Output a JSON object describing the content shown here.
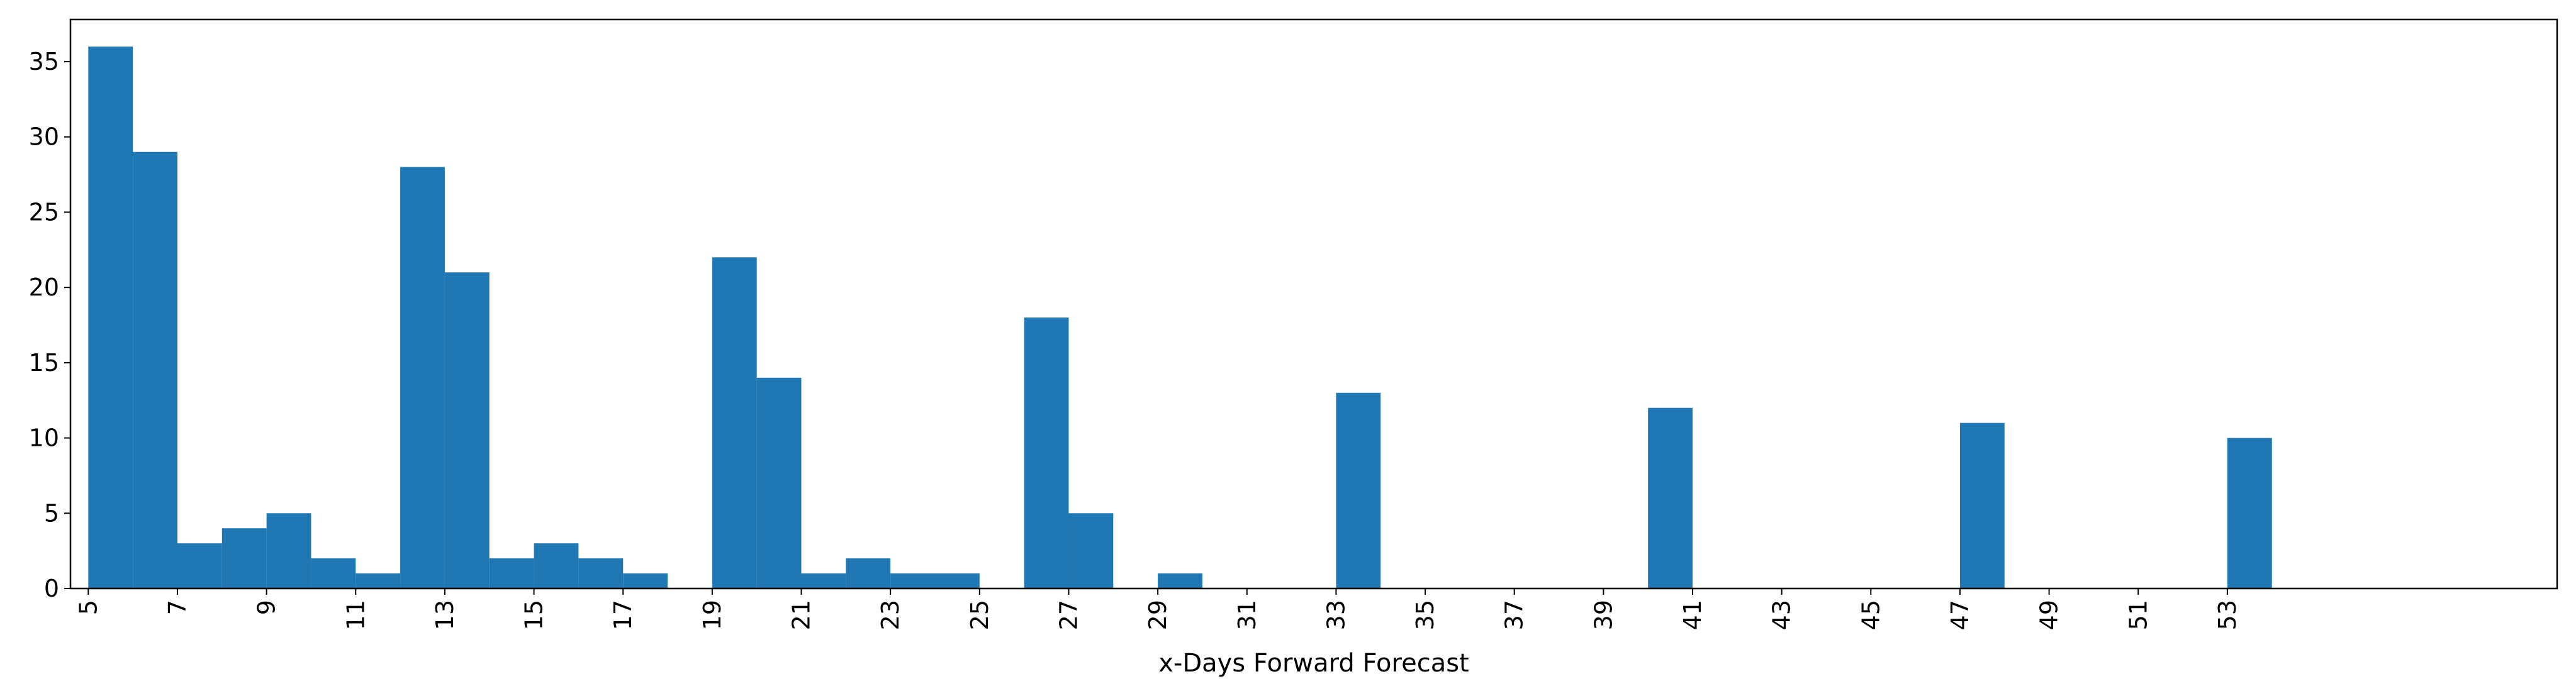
{
  "chart_data": {
    "type": "bar",
    "title": "",
    "xlabel": "x-Days Forward Forecast",
    "ylabel": "",
    "bar_color": "#1f77b4",
    "grid": false,
    "legend": "none",
    "xlim": [
      4.6,
      60.4
    ],
    "ylim": [
      0,
      37.8
    ],
    "x_ticks": [
      5,
      7,
      9,
      11,
      13,
      15,
      17,
      19,
      21,
      23,
      25,
      27,
      29,
      31,
      33,
      35,
      37,
      39,
      41,
      43,
      45,
      47,
      49,
      51,
      53
    ],
    "x_tick_labels": [
      "5",
      "7",
      "9",
      "11",
      "13",
      "15",
      "17",
      "19",
      "21",
      "23",
      "25",
      "27",
      "29",
      "31",
      "33",
      "35",
      "37",
      "39",
      "41",
      "43",
      "45",
      "47",
      "49",
      "51",
      "53"
    ],
    "y_ticks": [
      0,
      5,
      10,
      15,
      20,
      25,
      30,
      35
    ],
    "y_tick_labels": [
      "0",
      "5",
      "10",
      "15",
      "20",
      "25",
      "30",
      "35"
    ],
    "bin_width": 1,
    "bins": [
      {
        "x": 5,
        "value": 36
      },
      {
        "x": 6,
        "value": 29
      },
      {
        "x": 7,
        "value": 3
      },
      {
        "x": 8,
        "value": 4
      },
      {
        "x": 9,
        "value": 5
      },
      {
        "x": 10,
        "value": 2
      },
      {
        "x": 11,
        "value": 1
      },
      {
        "x": 12,
        "value": 28
      },
      {
        "x": 13,
        "value": 21
      },
      {
        "x": 14,
        "value": 2
      },
      {
        "x": 15,
        "value": 3
      },
      {
        "x": 16,
        "value": 2
      },
      {
        "x": 17,
        "value": 1
      },
      {
        "x": 19,
        "value": 22
      },
      {
        "x": 20,
        "value": 14
      },
      {
        "x": 21,
        "value": 1
      },
      {
        "x": 22,
        "value": 2
      },
      {
        "x": 23,
        "value": 1
      },
      {
        "x": 24,
        "value": 1
      },
      {
        "x": 26,
        "value": 18
      },
      {
        "x": 27,
        "value": 5
      },
      {
        "x": 29,
        "value": 1
      },
      {
        "x": 33,
        "value": 13
      },
      {
        "x": 40,
        "value": 12
      },
      {
        "x": 47,
        "value": 11
      },
      {
        "x": 53,
        "value": 10
      }
    ]
  }
}
